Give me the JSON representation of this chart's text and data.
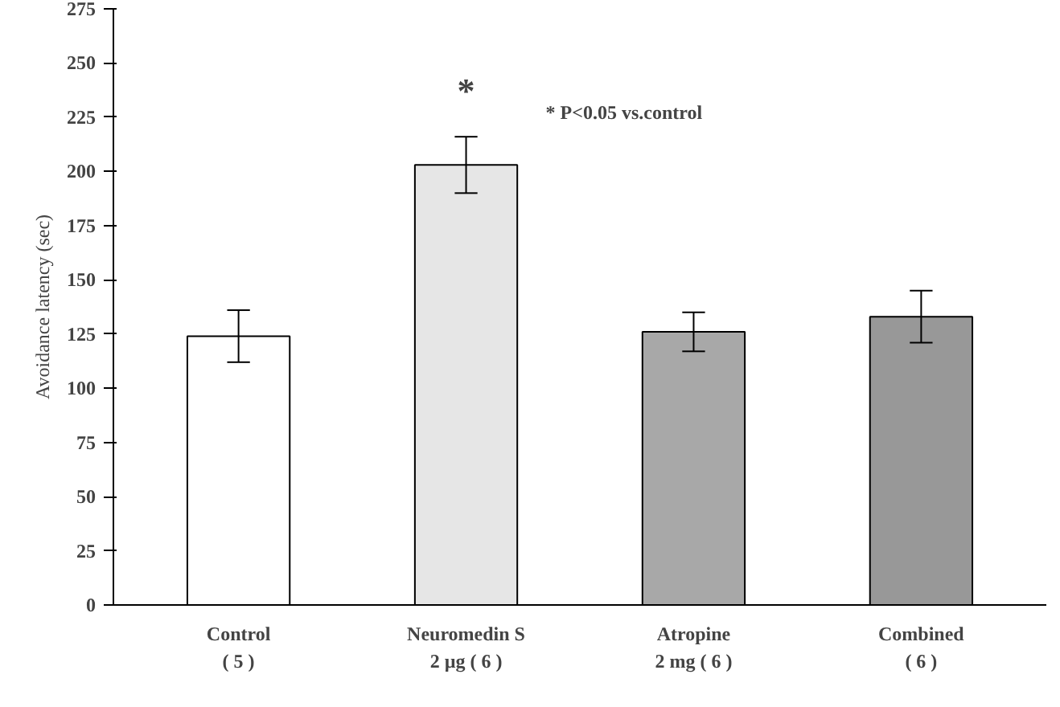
{
  "chart_data": {
    "type": "bar",
    "ylabel": "Avoidance latency (sec)",
    "categories": [
      "Control\n( 5 )",
      "Neuromedin S\n2 µg ( 6 )",
      "Atropine\n2 mg ( 6 )",
      "Combined\n( 6 )"
    ],
    "values": [
      124,
      203,
      126,
      133
    ],
    "errors": [
      12,
      13,
      9,
      12
    ],
    "colors": [
      "#ffffff",
      "#e6e6e6",
      "#a8a8a8",
      "#989898"
    ],
    "ylim": [
      0,
      275
    ],
    "yticks": [
      0,
      25,
      50,
      75,
      100,
      125,
      150,
      175,
      200,
      225,
      250,
      275
    ],
    "grid": false,
    "annotations": [
      "*",
      "* P<0.05 vs.control"
    ]
  }
}
